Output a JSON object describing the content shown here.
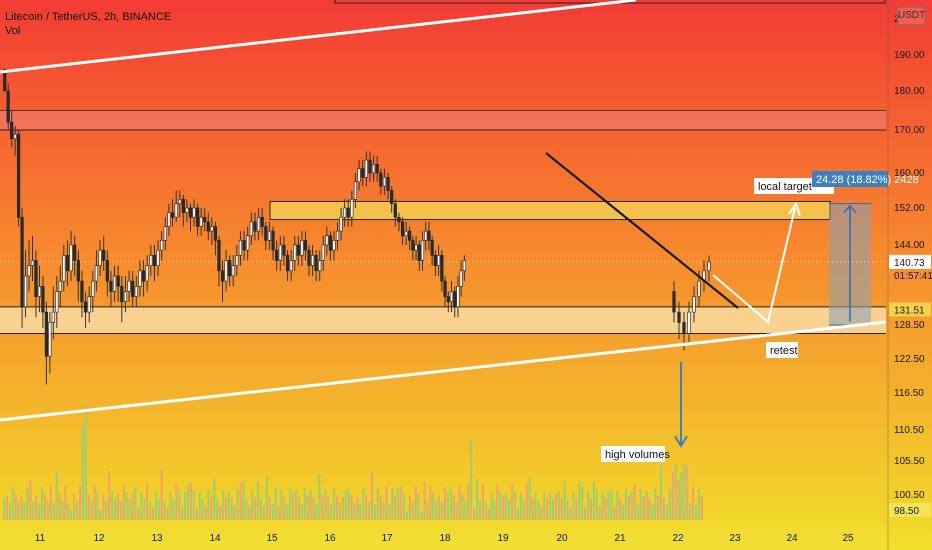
{
  "header": {
    "title": "Litecoin / TetherUS, 2h, BINANCE",
    "volume_label": "Vol"
  },
  "currency_badge": "USDT",
  "colors": {
    "bg_top": "#f23b34",
    "bg_mid": "#f7882e",
    "bg_bottom": "#f1df2a",
    "candle_up": "#26a69a",
    "candle_down": "#ef5350",
    "trendline": "#ffffff",
    "downtrend": "#1b1b1b",
    "highlight_zone": "#f6c04c",
    "target_box": "#3d7fbf",
    "projection_box": "#8aa0b8"
  },
  "chart_data": {
    "type": "candlestick",
    "symbol": "Litecoin / TetherUS",
    "timeframe": "2h",
    "exchange": "BINANCE",
    "y_axis": {
      "ticks": [
        190,
        180,
        170,
        160,
        152,
        144,
        128.5,
        122.5,
        116.5,
        110.5,
        105.5,
        100.5,
        98.5
      ],
      "tick_labels": [
        "190.00",
        "180.00",
        "170.00",
        "160.00",
        "152.00",
        "144.00",
        "128.50",
        "122.50",
        "116.50",
        "110.50",
        "105.50",
        "100.50",
        "98.50"
      ],
      "top_partial_label": "2",
      "range": [
        96.5,
        200
      ]
    },
    "x_axis": {
      "tick_labels": [
        "11",
        "12",
        "13",
        "14",
        "15",
        "16",
        "17",
        "18",
        "19",
        "20",
        "21",
        "22",
        "23",
        "24",
        "25"
      ]
    },
    "price_labels": [
      {
        "value": 140.73,
        "text": "140.73",
        "style": "current"
      },
      {
        "value": 136.5,
        "text": "01:57:41",
        "style": "countdown"
      },
      {
        "value": 131.51,
        "text": "131.51",
        "style": "level"
      },
      {
        "value": 98.5,
        "text": "98.50",
        "style": "bottom"
      }
    ],
    "candles": {
      "days": [
        {
          "day": 11,
          "points": [
            [
              186,
              180,
              186,
              180
            ],
            [
              180,
              172,
              182,
              170
            ],
            [
              172,
              168,
              175,
              166
            ],
            [
              168,
              169,
              171,
              164
            ],
            [
              169,
              150,
              170,
              148
            ],
            [
              150,
              132,
              152,
              128
            ],
            [
              132,
              138,
              143,
              130
            ],
            [
              138,
              140,
              145,
              135
            ],
            [
              140,
              141,
              146,
              137
            ],
            [
              141,
              134,
              143,
              130
            ],
            [
              134,
              136,
              140,
              131
            ],
            [
              136,
              131,
              138,
              128
            ],
            [
              131,
              123,
              133,
              118
            ],
            [
              123,
              129,
              131,
              120
            ],
            [
              129,
              131,
              136,
              126
            ],
            [
              131,
              135,
              138,
              128
            ],
            [
              135,
              137,
              140,
              132
            ]
          ]
        },
        {
          "day": 12,
          "points": [
            [
              137,
              142,
              144,
              135
            ],
            [
              142,
              139,
              145,
              136
            ],
            [
              139,
              144,
              147,
              137
            ],
            [
              144,
              141,
              146,
              138
            ],
            [
              141,
              137,
              143,
              133
            ],
            [
              137,
              133,
              139,
              130
            ],
            [
              133,
              131,
              135,
              128
            ],
            [
              131,
              134,
              136,
              129
            ],
            [
              134,
              137,
              139,
              131
            ],
            [
              137,
              140,
              143,
              135
            ],
            [
              140,
              143,
              145,
              138
            ],
            [
              143,
              141,
              146,
              139
            ],
            [
              141,
              137,
              143,
              134
            ],
            [
              137,
              135,
              139,
              132
            ],
            [
              135,
              138,
              140,
              133
            ],
            [
              138,
              136,
              140,
              133
            ]
          ]
        },
        {
          "day": 13,
          "points": [
            [
              136,
              133,
              138,
              129
            ],
            [
              133,
              135,
              138,
              131
            ],
            [
              135,
              137,
              139,
              133
            ],
            [
              137,
              134,
              139,
              132
            ],
            [
              134,
              136,
              138,
              132
            ],
            [
              136,
              139,
              141,
              134
            ],
            [
              139,
              137,
              141,
              134
            ],
            [
              137,
              140,
              142,
              135
            ],
            [
              140,
              142,
              144,
              138
            ],
            [
              142,
              140,
              144,
              137
            ],
            [
              140,
              143,
              145,
              138
            ],
            [
              143,
              145,
              147,
              141
            ],
            [
              145,
              148,
              150,
              143
            ],
            [
              148,
              151,
              153,
              146
            ],
            [
              151,
              150,
              154,
              148
            ],
            [
              150,
              153,
              156,
              149
            ]
          ]
        },
        {
          "day": 14,
          "points": [
            [
              153,
              154,
              156,
              150
            ],
            [
              154,
              151,
              155,
              148
            ],
            [
              151,
              152,
              154,
              149
            ],
            [
              152,
              150,
              153,
              147
            ],
            [
              150,
              152,
              154,
              148
            ],
            [
              152,
              148,
              153,
              146
            ],
            [
              148,
              150,
              152,
              146
            ],
            [
              150,
              149,
              152,
              147
            ],
            [
              149,
              147,
              151,
              145
            ],
            [
              147,
              148,
              150,
              144
            ],
            [
              148,
              145,
              149,
              142
            ],
            [
              145,
              139,
              146,
              136
            ],
            [
              139,
              137,
              141,
              133
            ],
            [
              137,
              141,
              143,
              135
            ],
            [
              141,
              138,
              142,
              136
            ],
            [
              138,
              140,
              142,
              136
            ]
          ]
        },
        {
          "day": 15,
          "points": [
            [
              140,
              142,
              144,
              138
            ],
            [
              142,
              145,
              147,
              140
            ],
            [
              145,
              143,
              147,
              141
            ],
            [
              143,
              146,
              148,
              141
            ],
            [
              146,
              149,
              151,
              144
            ],
            [
              149,
              147,
              151,
              145
            ],
            [
              147,
              150,
              152,
              145
            ],
            [
              150,
              148,
              152,
              146
            ],
            [
              148,
              145,
              149,
              143
            ],
            [
              145,
              147,
              149,
              143
            ],
            [
              147,
              143,
              148,
              141
            ],
            [
              143,
              141,
              145,
              139
            ],
            [
              141,
              144,
              146,
              139
            ],
            [
              144,
              142,
              146,
              140
            ],
            [
              142,
              139,
              143,
              137
            ],
            [
              139,
              141,
              143,
              137
            ]
          ]
        },
        {
          "day": 16,
          "points": [
            [
              141,
              144,
              146,
              139
            ],
            [
              144,
              142,
              146,
              140
            ],
            [
              142,
              145,
              147,
              140
            ],
            [
              145,
              143,
              147,
              141
            ],
            [
              143,
              140,
              144,
              138
            ],
            [
              140,
              142,
              144,
              138
            ],
            [
              142,
              139,
              143,
              137
            ],
            [
              139,
              141,
              143,
              137
            ],
            [
              141,
              144,
              146,
              139
            ],
            [
              144,
              146,
              148,
              142
            ],
            [
              146,
              143,
              147,
              141
            ],
            [
              143,
              145,
              147,
              141
            ],
            [
              145,
              147,
              149,
              143
            ],
            [
              147,
              150,
              152,
              145
            ],
            [
              150,
              152,
              154,
              148
            ],
            [
              152,
              150,
              154,
              148
            ]
          ]
        },
        {
          "day": 17,
          "points": [
            [
              150,
              154,
              156,
              148
            ],
            [
              154,
              158,
              160,
              152
            ],
            [
              158,
              161,
              163,
              156
            ],
            [
              161,
              159,
              163,
              157
            ],
            [
              159,
              163,
              165,
              157
            ],
            [
              163,
              160,
              165,
              158
            ],
            [
              160,
              162,
              164,
              158
            ],
            [
              162,
              160,
              164,
              158
            ],
            [
              160,
              157,
              161,
              155
            ],
            [
              157,
              159,
              161,
              155
            ],
            [
              159,
              156,
              160,
              154
            ],
            [
              156,
              153,
              157,
              151
            ],
            [
              153,
              150,
              154,
              148
            ],
            [
              150,
              149,
              151,
              147
            ],
            [
              149,
              146,
              150,
              144
            ],
            [
              146,
              147,
              149,
              144
            ]
          ]
        },
        {
          "day": 18,
          "points": [
            [
              147,
              145,
              148,
              143
            ],
            [
              145,
              143,
              146,
              141
            ],
            [
              143,
              144,
              146,
              141
            ],
            [
              144,
              141,
              145,
              139
            ],
            [
              141,
              145,
              147,
              139
            ],
            [
              145,
              147,
              149,
              143
            ],
            [
              147,
              145,
              149,
              143
            ],
            [
              145,
              142,
              146,
              140
            ],
            [
              142,
              140,
              143,
              138
            ],
            [
              140,
              142,
              144,
              138
            ],
            [
              142,
              137,
              143,
              135
            ],
            [
              137,
              134,
              138,
              132
            ],
            [
              134,
              133,
              135,
              131
            ],
            [
              133,
              135,
              137,
              131
            ],
            [
              135,
              132,
              136,
              130
            ],
            [
              132,
              136,
              138,
              130
            ],
            [
              136,
              139,
              141,
              134
            ],
            [
              139,
              141,
              142,
              137
            ]
          ]
        }
      ]
    },
    "volume": {
      "pattern": "histogram",
      "high_volume_days": [
        "11",
        "22"
      ]
    },
    "drawings": [
      {
        "type": "trendline",
        "name": "upper-channel"
      },
      {
        "type": "trendline",
        "name": "lower-channel"
      },
      {
        "type": "trendline",
        "name": "descending-resistance"
      },
      {
        "type": "zone",
        "from": 170,
        "to": 175
      },
      {
        "type": "zone",
        "from": 149.5,
        "to": 153.5
      },
      {
        "type": "zone",
        "from": 127,
        "to": 132
      }
    ],
    "annotations": {
      "local_target": "local target",
      "retest": "retest",
      "high_volumes": "high volumes",
      "measure": "24.28 (18.82%) 2428"
    }
  }
}
